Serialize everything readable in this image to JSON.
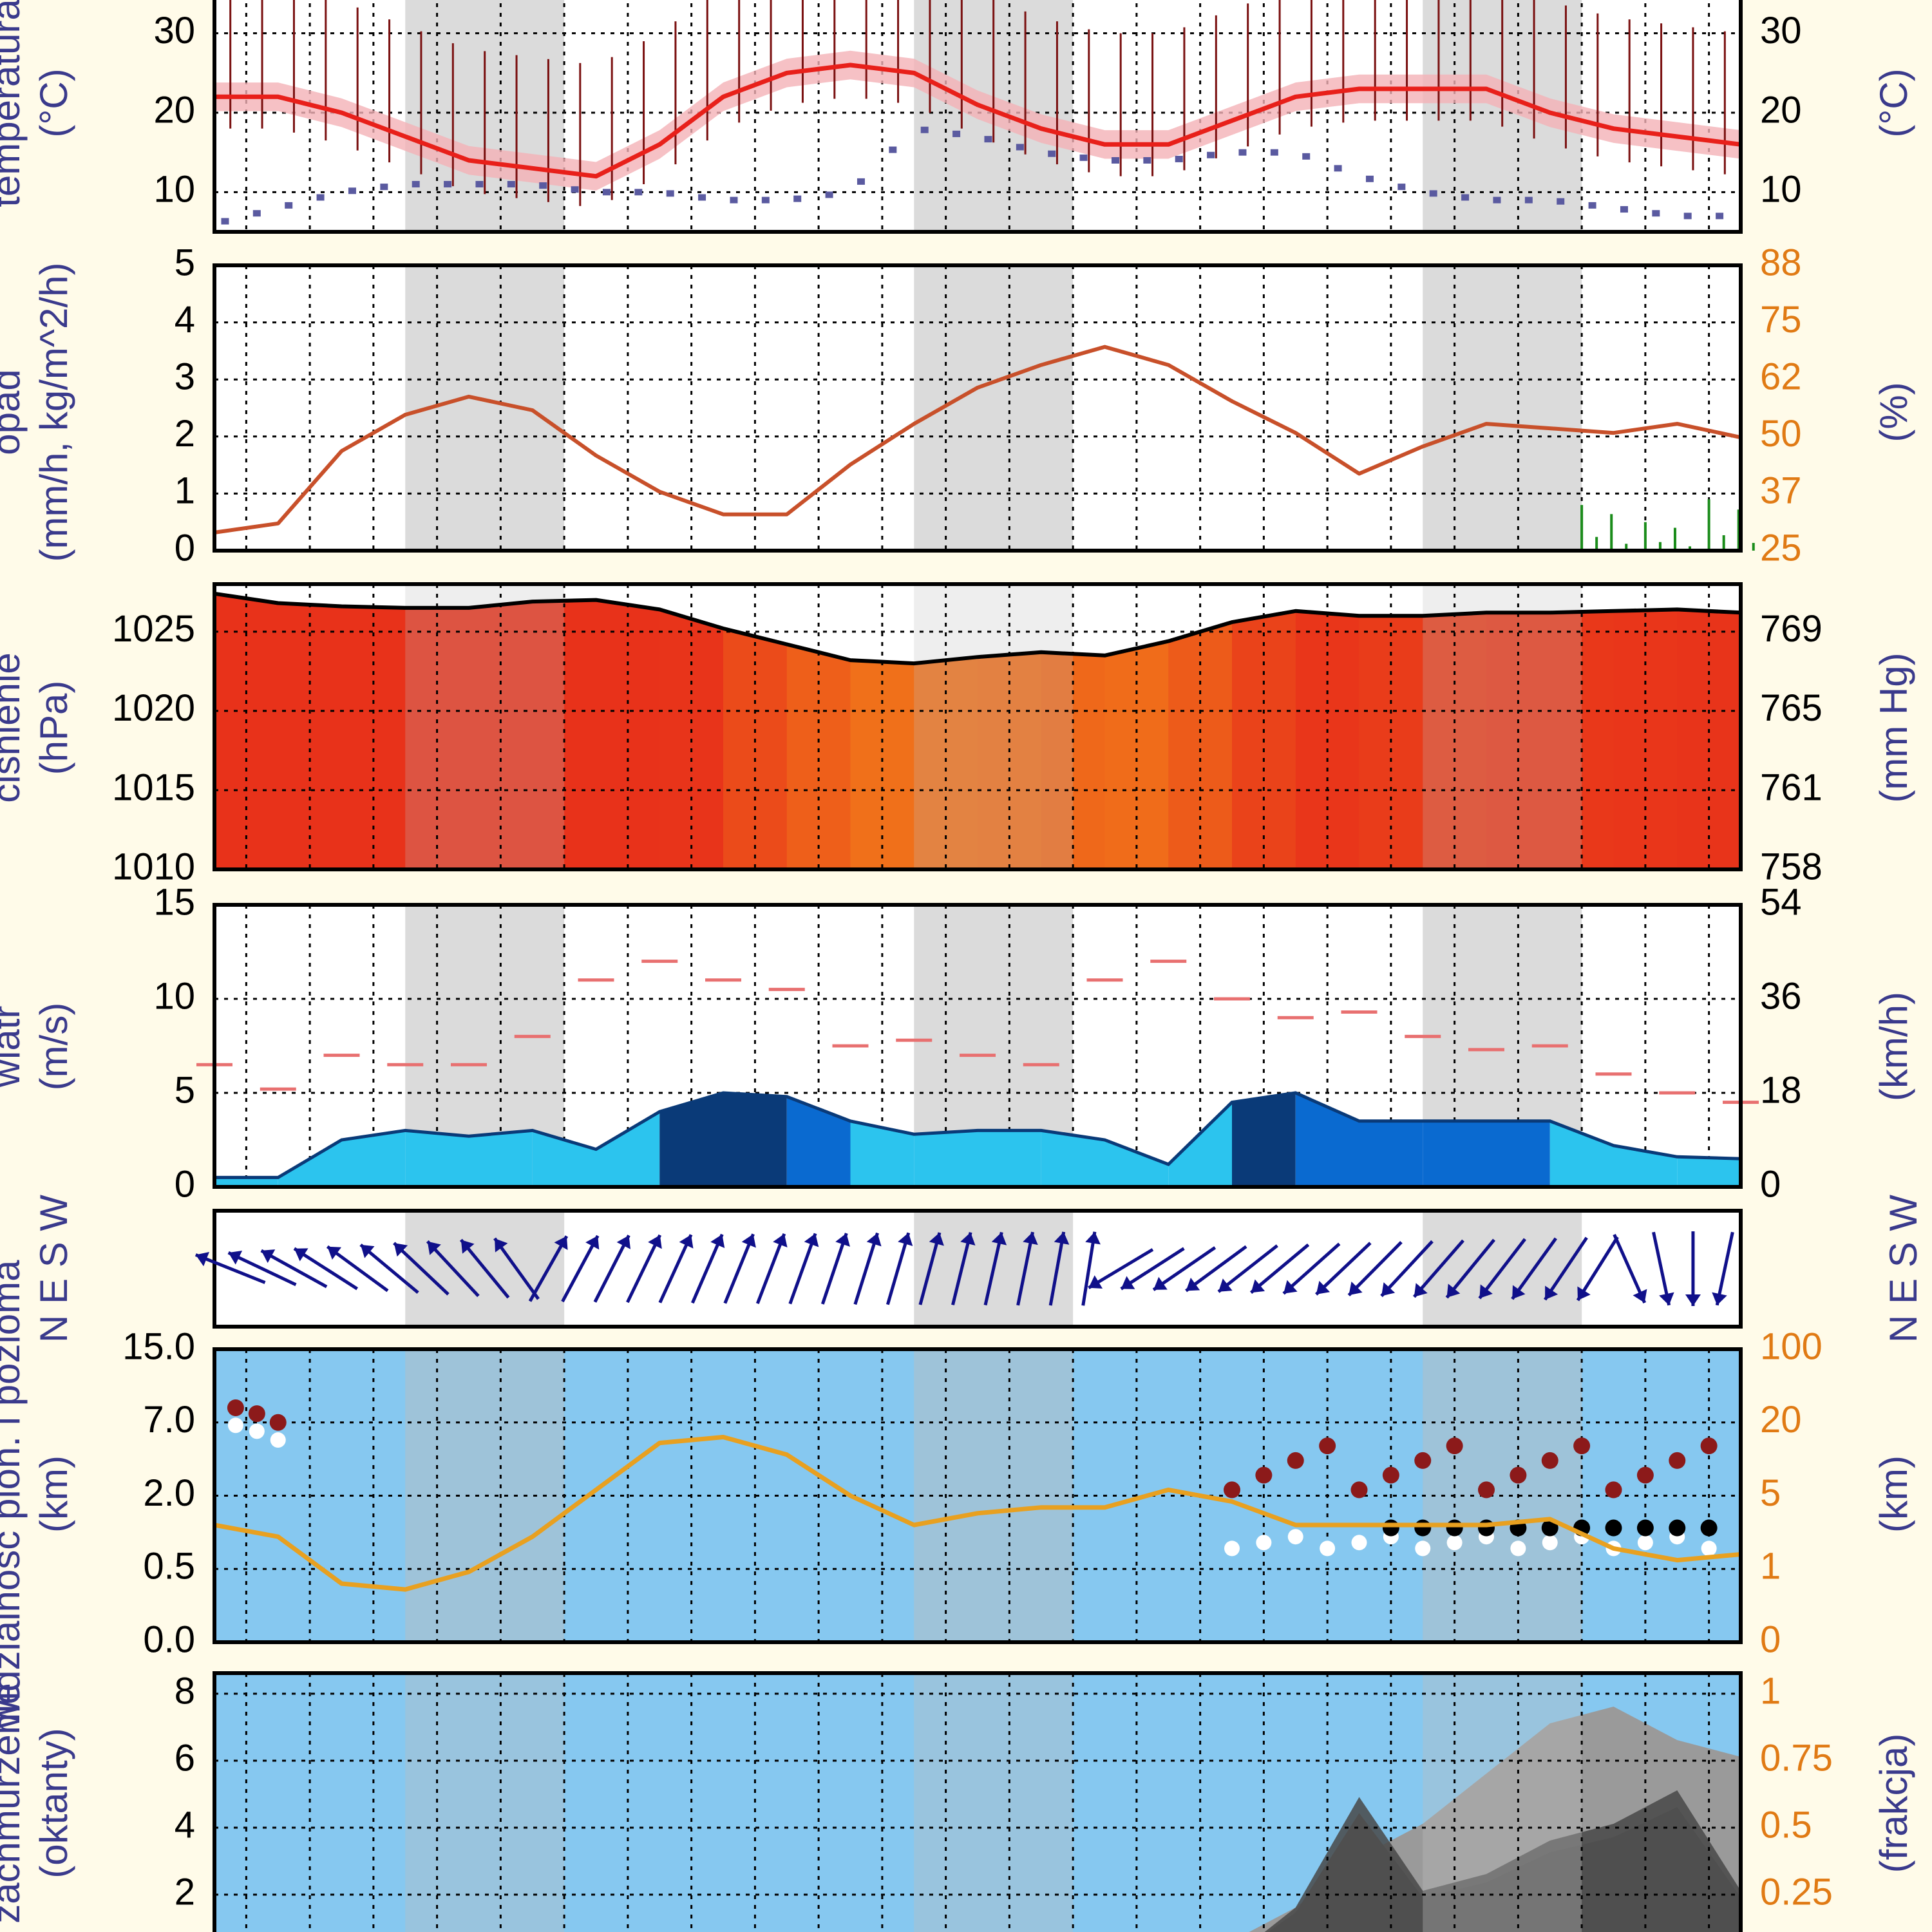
{
  "colors": {
    "background": "#fffbe9",
    "plot_bg": "#ffffff",
    "sky_bg": "#86c8f0",
    "frame": "#000000",
    "grid": "#000000",
    "night_band": "#bdbdbd",
    "label_blue": "#3a3a8c",
    "label_orange": "#e07a14",
    "temp_line": "#e8201a",
    "temp_band": "#f4b2b6",
    "temp_bars": "#7a1010",
    "dewpoint": "#5a5aa0",
    "humidity": "#c8502a",
    "precip": "#1a8c1a",
    "pressure_line": "#000000",
    "pressure_fill_hi": "#e8321a",
    "pressure_fill_lo": "#f06e1a",
    "gust": "#e87070",
    "wind_dark": "#0a3a78",
    "wind_mid": "#0a6ad0",
    "wind_light": "#2cc4ee",
    "wind_arrow": "#10108a",
    "cloud_base": "#e8a020",
    "dots_red": "#8c1a1a",
    "dots_white": "#ffffff",
    "dots_black": "#000000",
    "cloud_dark": "#484848",
    "cloud_mid": "#7a7a7a",
    "cloud_light": "#9a9a9a"
  },
  "panels": {
    "temperature": {
      "left_label": "temperatura",
      "left_unit": "(°C)",
      "right_unit": "(°C)",
      "left_ticks": [
        "30",
        "20",
        "10"
      ],
      "right_ticks": [
        "30",
        "20",
        "10"
      ]
    },
    "precipitation": {
      "left_label": "opad",
      "left_unit": "(mm/h, kg/m^2/h)",
      "right_unit": "(%)",
      "left_ticks": [
        "5",
        "4",
        "3",
        "2",
        "1",
        "0"
      ],
      "right_ticks": [
        "88",
        "75",
        "62",
        "50",
        "37",
        "25"
      ]
    },
    "pressure": {
      "left_label": "ciśnienie",
      "left_unit": "(hPa)",
      "right_unit": "(mm Hg)",
      "left_ticks": [
        "1025",
        "1020",
        "1015",
        "1010"
      ],
      "right_ticks": [
        "769",
        "765",
        "761",
        "758"
      ]
    },
    "wind": {
      "left_label": "wiatr",
      "left_unit": "(m/s)",
      "right_unit": "(km/h)",
      "left_ticks": [
        "15",
        "10",
        "5",
        "0"
      ],
      "right_ticks": [
        "54",
        "36",
        "18",
        "0"
      ]
    },
    "direction": {
      "left_compass": "N E S W",
      "right_compass": "N E S W"
    },
    "visibility": {
      "left_label": "widzialność pion. i pozioma",
      "left_unit": "(km)",
      "right_unit": "(km)",
      "left_ticks": [
        "15.0",
        "7.0",
        "2.0",
        "0.5",
        "0.0"
      ],
      "right_ticks": [
        "100",
        "20",
        "5",
        "1",
        "0"
      ]
    },
    "clouds": {
      "left_label": "zachmurzenie",
      "left_unit": "(oktanty)",
      "right_unit": "(frakcja)",
      "left_ticks": [
        "8",
        "6",
        "4",
        "2"
      ],
      "right_ticks": [
        "1",
        "0.75",
        "0.5",
        "0.25"
      ]
    }
  },
  "chart_data": [
    {
      "type": "line",
      "panel": "temperature",
      "x": [
        0,
        6,
        12,
        18,
        24,
        30,
        36,
        42,
        48,
        54,
        60,
        66,
        72,
        78,
        84,
        90,
        96,
        102,
        108,
        114,
        120,
        126,
        132,
        138,
        144
      ],
      "series": [
        {
          "values": [
            22,
            22,
            20,
            17,
            14,
            13,
            12,
            16,
            22,
            25,
            26,
            25,
            21,
            18,
            16,
            16,
            19,
            22,
            23,
            23,
            23,
            20,
            18,
            17,
            16
          ]
        },
        {
          "values": [
            6,
            8,
            10,
            11,
            11,
            11,
            10,
            10,
            9,
            9,
            10,
            18,
            17,
            15,
            14,
            14,
            15,
            15,
            12,
            10,
            9,
            9,
            8,
            7,
            7
          ]
        }
      ],
      "ylim": [
        5,
        35
      ]
    },
    {
      "type": "line",
      "panel": "precipitation",
      "x": [
        0,
        6,
        12,
        18,
        24,
        30,
        36,
        42,
        48,
        54,
        60,
        66,
        72,
        78,
        84,
        90,
        96,
        102,
        108,
        114,
        120,
        126,
        132,
        138,
        144
      ],
      "series": [
        {
          "values": [
            29,
            31,
            47,
            55,
            59,
            56,
            46,
            38,
            33,
            33,
            44,
            53,
            61,
            66,
            70,
            66,
            58,
            51,
            42,
            48,
            53,
            52,
            51,
            53,
            50
          ]
        }
      ],
      "precip_values": [
        0,
        0,
        0,
        0,
        0,
        0,
        0,
        0,
        0,
        0,
        0,
        0,
        0,
        0,
        0,
        0,
        0,
        0,
        0,
        0,
        0,
        0,
        0.8,
        0.5,
        0.9
      ],
      "ylim": [
        25,
        88
      ]
    },
    {
      "type": "area",
      "panel": "pressure",
      "x": [
        0,
        6,
        12,
        18,
        24,
        30,
        36,
        42,
        48,
        54,
        60,
        66,
        72,
        78,
        84,
        90,
        96,
        102,
        108,
        114,
        120,
        126,
        132,
        138,
        144
      ],
      "series": [
        {
          "values": [
            1027.4,
            1026.8,
            1026.6,
            1026.5,
            1026.5,
            1026.9,
            1027.0,
            1026.4,
            1025.2,
            1024.2,
            1023.2,
            1023.0,
            1023.4,
            1023.7,
            1023.5,
            1024.4,
            1025.6,
            1026.3,
            1026.0,
            1026.0,
            1026.2,
            1026.2,
            1026.3,
            1026.4,
            1026.2
          ]
        }
      ],
      "ylim": [
        1010,
        1028
      ]
    },
    {
      "type": "area",
      "panel": "wind",
      "x": [
        0,
        6,
        12,
        18,
        24,
        30,
        36,
        42,
        48,
        54,
        60,
        66,
        72,
        78,
        84,
        90,
        96,
        102,
        108,
        114,
        120,
        126,
        132,
        138,
        144
      ],
      "series": [
        {
          "values": [
            0.5,
            0.5,
            2.5,
            3.0,
            2.7,
            3.0,
            2.0,
            4.0,
            5.0,
            4.8,
            3.5,
            2.8,
            3.0,
            3.0,
            2.5,
            1.2,
            4.5,
            5.0,
            3.5,
            3.5,
            3.5,
            3.5,
            2.2,
            1.6,
            1.5
          ]
        },
        {
          "values": [
            6.5,
            5.2,
            7.0,
            6.5,
            6.5,
            8.0,
            11.0,
            12.0,
            11.0,
            10.5,
            7.5,
            7.8,
            7.0,
            6.5,
            11.0,
            12.0,
            10.0,
            9.0,
            9.3,
            8.0,
            7.3,
            7.5,
            6.0,
            5.0,
            4.5
          ]
        }
      ],
      "ylim": [
        0,
        15
      ]
    },
    {
      "type": "line",
      "panel": "visibility",
      "x": [
        0,
        6,
        12,
        18,
        24,
        30,
        36,
        42,
        48,
        54,
        60,
        66,
        72,
        78,
        84,
        90,
        96,
        102,
        108,
        114,
        120,
        126,
        132,
        138,
        144
      ],
      "series": [
        {
          "values": [
            2.0,
            1.8,
            1.0,
            0.9,
            1.2,
            1.8,
            2.6,
            3.4,
            3.5,
            3.2,
            2.5,
            2.0,
            2.2,
            2.3,
            2.3,
            2.6,
            2.4,
            2.0,
            2.0,
            2.0,
            2.0,
            2.1,
            1.6,
            1.4,
            1.5
          ]
        }
      ],
      "ylim": [
        0,
        5
      ]
    },
    {
      "type": "area",
      "panel": "clouds",
      "x": [
        0,
        6,
        12,
        18,
        24,
        30,
        36,
        42,
        48,
        54,
        60,
        66,
        72,
        78,
        84,
        90,
        96,
        102,
        108,
        114,
        120,
        126,
        132,
        138,
        144
      ],
      "series": [
        {
          "values": [
            0.2,
            0,
            0,
            0,
            0,
            0,
            0,
            0,
            0,
            0,
            0,
            0,
            0,
            0,
            0,
            0,
            0.5,
            1.5,
            3.0,
            4.0,
            5.5,
            7.0,
            7.5,
            6.5,
            6.0
          ]
        },
        {
          "values": [
            0,
            0,
            0,
            0,
            0,
            0,
            0,
            0,
            0,
            0,
            0,
            0,
            0,
            0,
            0,
            0,
            0,
            1.5,
            4.8,
            2.0,
            2.5,
            3.5,
            4.0,
            5.0,
            2.0
          ]
        }
      ],
      "ylim": [
        0,
        8
      ]
    }
  ]
}
